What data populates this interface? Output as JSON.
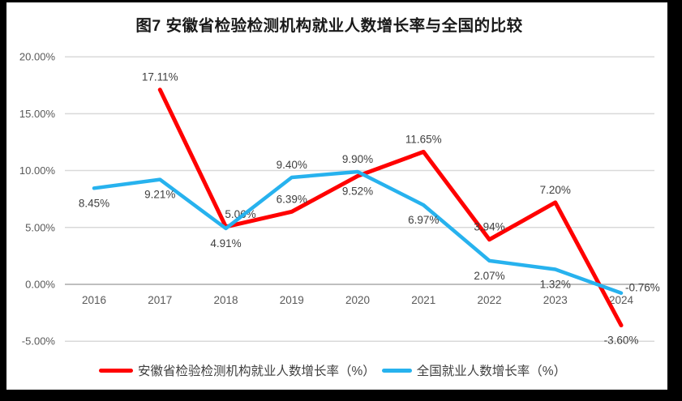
{
  "title": "图7  安徽省检验检测机构就业人数增长率与全国的比较",
  "chart_data": {
    "type": "line",
    "categories": [
      "2016",
      "2017",
      "2018",
      "2019",
      "2020",
      "2021",
      "2022",
      "2023",
      "2024"
    ],
    "series": [
      {
        "key": "anhui",
        "name": "安徽省检验检测机构就业人数增长率（%）",
        "color": "#FF0000",
        "values": [
          null,
          17.11,
          5.06,
          6.39,
          9.52,
          11.65,
          3.94,
          7.2,
          -3.6
        ],
        "point_labels": [
          "",
          "17.11%",
          "5.06%",
          "6.39%",
          "9.52%",
          "11.65%",
          "3.94%",
          "7.20%",
          "-3.60%"
        ],
        "label_placement": [
          "",
          "above",
          "above-right",
          "above",
          "below",
          "above",
          "above",
          "above",
          "below"
        ]
      },
      {
        "key": "national",
        "name": "全国就业人数增长率（%）",
        "color": "#27B2EE",
        "values": [
          8.45,
          9.21,
          4.91,
          9.4,
          9.9,
          6.97,
          2.07,
          1.32,
          -0.76
        ],
        "point_labels": [
          "8.45%",
          "9.21%",
          "4.91%",
          "9.40%",
          "9.90%",
          "6.97%",
          "2.07%",
          "1.32%",
          "-0.76%"
        ],
        "label_placement": [
          "below",
          "below",
          "below",
          "above",
          "above",
          "below",
          "below",
          "below",
          "right"
        ]
      }
    ],
    "y_axis": {
      "tick_labels": [
        "20.00%",
        "15.00%",
        "10.00%",
        "5.00%",
        "0.00%",
        "-5.00%"
      ],
      "tick_values": [
        20,
        15,
        10,
        5,
        0,
        -5
      ],
      "range": [
        -5,
        20
      ]
    },
    "grid": true,
    "legend_position": "bottom",
    "colors": {
      "gridline": "#D9D9D9",
      "zero_line": "#BFBFBF",
      "tick_text": "#595959",
      "data_label_text": "#3F3F3F",
      "title_text": "#1A1A1A",
      "legend_text": "#404040",
      "frame": "#000000",
      "background": "#FFFFFF"
    }
  }
}
